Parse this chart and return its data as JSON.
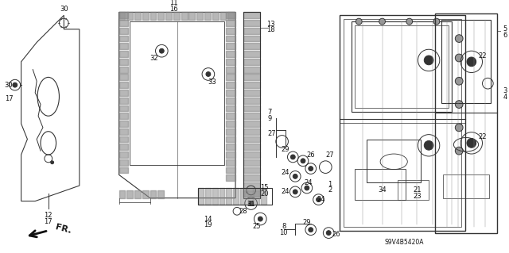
{
  "bg_color": "#ffffff",
  "diagram_code": "S9V4B5420A",
  "fig_width": 6.4,
  "fig_height": 3.19,
  "dpi": 100
}
